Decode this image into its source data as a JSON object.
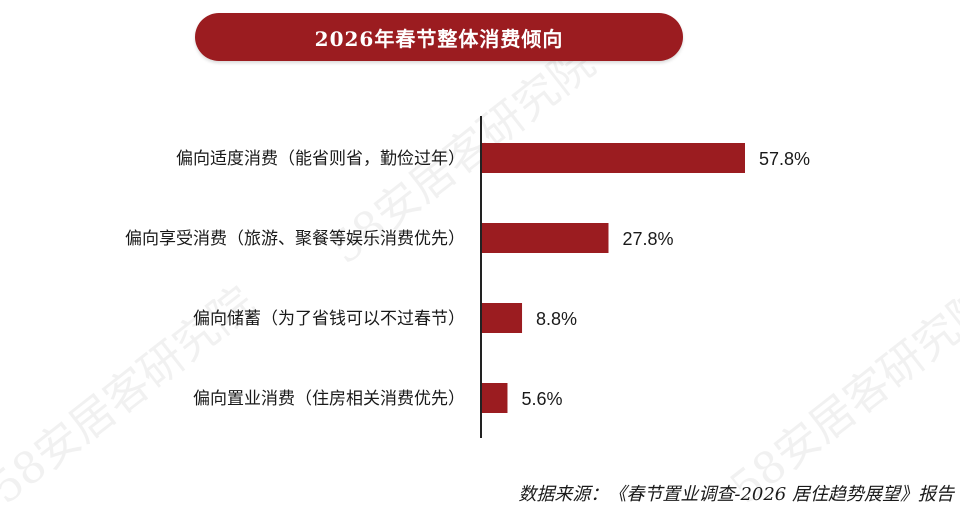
{
  "chart_data": {
    "type": "bar",
    "orientation": "horizontal",
    "title": "2026年春节整体消费倾向",
    "categories": [
      "偏向适度消费（能省则省，勤俭过年）",
      "偏向享受消费（旅游、聚餐等娱乐消费优先）",
      "偏向储蓄（为了省钱可以不过春节）",
      "偏向置业消费（住房相关消费优先）"
    ],
    "values": [
      57.8,
      27.8,
      8.8,
      5.6
    ],
    "value_labels": [
      "57.8%",
      "27.8%",
      "8.8%",
      "5.6%"
    ],
    "unit": "%",
    "xlim": [
      0,
      100
    ],
    "grid": false,
    "legend": "none",
    "bar_color": "#9b1c20"
  },
  "source": "数据来源：《春节置业调查-2026 居住趋势展望》报告",
  "watermark": "58安居客研究院",
  "colors": {
    "accent": "#9b1c20",
    "axis": "#222222",
    "text": "#1a1a1a"
  }
}
